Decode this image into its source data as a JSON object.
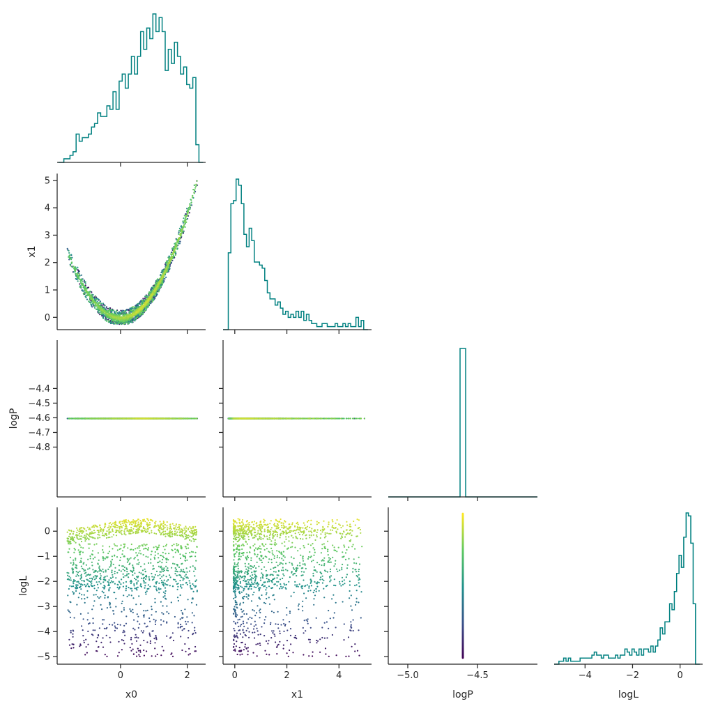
{
  "chart_data": {
    "type": "corner",
    "variables": [
      "x0",
      "x1",
      "logP",
      "logL"
    ],
    "color_by": "logL",
    "colormap": [
      "#440154",
      "#3b528b",
      "#21918c",
      "#5ec962",
      "#fde725"
    ],
    "hist_color": "#008080",
    "ranges": {
      "x0": [
        -1.9,
        2.55
      ],
      "x1": [
        -0.45,
        5.25
      ],
      "logP": [
        -5.14,
        -4.07
      ],
      "logL": [
        -5.3,
        0.95
      ]
    },
    "ticks": {
      "x0": [
        0,
        2
      ],
      "x1": [
        0,
        2,
        4
      ],
      "logP": [
        -5.0,
        -4.5
      ],
      "logL": [
        -4,
        -2,
        0
      ]
    },
    "row_ticks": {
      "x1": [
        "0",
        "1",
        "2",
        "3",
        "4",
        "5"
      ],
      "logP": [
        "−4.4",
        "−4.5",
        "−4.6",
        "−4.7",
        "−4.8"
      ],
      "logL": [
        "0",
        "−1",
        "−2",
        "−3",
        "−4",
        "−5"
      ]
    },
    "col_tick_labels": {
      "x0": [
        "0",
        "2"
      ],
      "x1": [
        "0",
        "2",
        "4"
      ],
      "logP": [
        "−5.0",
        "−4.5"
      ],
      "logL": [
        "−4",
        "−2",
        "0"
      ]
    },
    "row_ticks_values": {
      "x1": [
        0,
        1,
        2,
        3,
        4,
        5
      ],
      "logP": [
        -4.4,
        -4.5,
        -4.6,
        -4.7,
        -4.8
      ],
      "logL": [
        0,
        -1,
        -2,
        -3,
        -4,
        -5
      ]
    },
    "logP_value": -4.605,
    "hist_x0": {
      "edges_start": -1.7,
      "edges_end": 2.35,
      "bins": 44,
      "counts": [
        1,
        1,
        2,
        3,
        8,
        6,
        7,
        7,
        8,
        10,
        11,
        14,
        13,
        13,
        16,
        15,
        20,
        15,
        23,
        25,
        21,
        25,
        30,
        25,
        30,
        37,
        32,
        38,
        35,
        42,
        37,
        41,
        37,
        26,
        32,
        28,
        34,
        30,
        25,
        27,
        22,
        21,
        24,
        5
      ]
    },
    "hist_x1": {
      "edges_start": -0.25,
      "edges_end": 4.95,
      "bins": 52,
      "counts": [
        25,
        41,
        42,
        49,
        47,
        41,
        31,
        27,
        33,
        29,
        22,
        22,
        21,
        20,
        16,
        12,
        10,
        10,
        8,
        9,
        7,
        5,
        6,
        4,
        5,
        4,
        6,
        4,
        6,
        3,
        5,
        3,
        2,
        2,
        1,
        1,
        2,
        2,
        1,
        1,
        1,
        2,
        1,
        1,
        2,
        1,
        2,
        1,
        1,
        4,
        1,
        3
      ]
    },
    "hist_logP": {
      "edges_start": -5.14,
      "edges_end": -4.07,
      "spike_low": -4.625,
      "spike_high": -4.585,
      "spike_rel": 1.0
    },
    "hist_logL": {
      "edges_start": -5.1,
      "edges_end": 0.65,
      "bins": 58,
      "counts": [
        1,
        1,
        2,
        1,
        2,
        1,
        1,
        1,
        1,
        2,
        2,
        2,
        2,
        2,
        3,
        4,
        3,
        3,
        2,
        3,
        3,
        2,
        2,
        2,
        3,
        2,
        3,
        3,
        5,
        4,
        3,
        5,
        4,
        3,
        5,
        3,
        5,
        5,
        4,
        6,
        4,
        6,
        8,
        12,
        10,
        14,
        14,
        20,
        18,
        24,
        30,
        36,
        32,
        42,
        50,
        49,
        40,
        20
      ]
    }
  }
}
